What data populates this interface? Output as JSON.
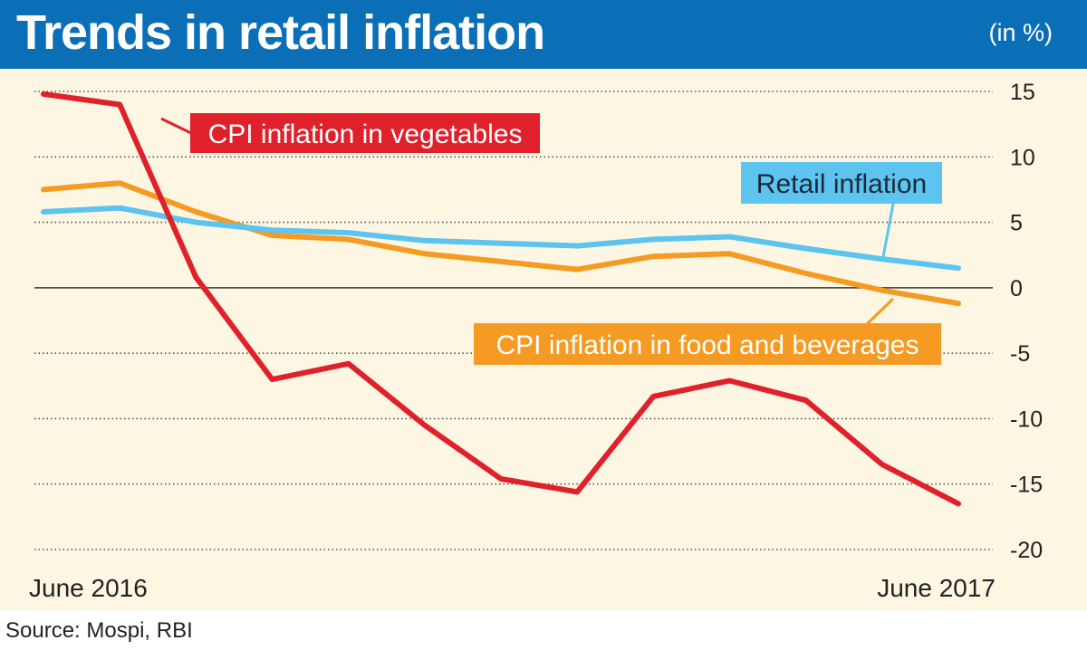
{
  "header": {
    "title": "Trends in retail inflation",
    "unit": "(in %)"
  },
  "footer": {
    "source": "Source: Mospi, RBI"
  },
  "colors": {
    "header_bg": "#0b6fb7",
    "panel_bg": "#fdf6e2",
    "vegetables": "#e0202a",
    "retail": "#5cc4ef",
    "food": "#f59a23"
  },
  "chart_data": {
    "type": "line",
    "x": [
      "June 2016",
      "",
      "",
      "",
      "",
      "",
      "",
      "",
      "",
      "",
      "",
      "",
      "June 2017"
    ],
    "xtick_labels": [
      "June 2016",
      "June 2017"
    ],
    "yticks": [
      15,
      10,
      5,
      0,
      -5,
      -10,
      -15,
      -20
    ],
    "ylim": [
      -20,
      15
    ],
    "grid": true,
    "series": [
      {
        "name": "CPI inflation in vegetables",
        "color": "#e0202a",
        "values": [
          14.8,
          14.0,
          0.8,
          -7.0,
          -5.8,
          -10.5,
          -14.6,
          -15.6,
          -8.3,
          -7.1,
          -8.6,
          -13.5,
          -16.5
        ]
      },
      {
        "name": "Retail inflation",
        "color": "#5cc4ef",
        "values": [
          5.8,
          6.1,
          5.0,
          4.4,
          4.2,
          3.6,
          3.4,
          3.2,
          3.7,
          3.9,
          3.0,
          2.2,
          1.5
        ]
      },
      {
        "name": "CPI inflation in food and beverages",
        "color": "#f59a23",
        "values": [
          7.5,
          8.0,
          5.8,
          4.0,
          3.7,
          2.6,
          2.0,
          1.4,
          2.4,
          2.6,
          1.1,
          -0.2,
          -1.2
        ]
      }
    ]
  }
}
